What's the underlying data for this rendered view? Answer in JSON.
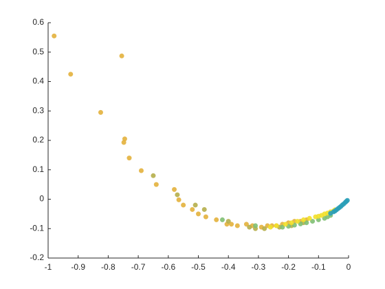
{
  "chart_data": {
    "type": "scatter",
    "xlim": [
      -1,
      0
    ],
    "ylim": [
      -0.2,
      0.6
    ],
    "xticks": [
      -1,
      -0.9,
      -0.8,
      -0.7,
      -0.6,
      -0.5,
      -0.4,
      -0.3,
      -0.2,
      -0.1,
      0
    ],
    "yticks": [
      -0.2,
      -0.1,
      0,
      0.1,
      0.2,
      0.3,
      0.4,
      0.5,
      0.6
    ],
    "grid": false,
    "series": [
      {
        "color": "#e3b13c",
        "x": [
          -0.98,
          -0.925,
          -0.825,
          -0.755,
          -0.745,
          -0.748,
          -0.73,
          -0.69,
          -0.64,
          -0.58,
          -0.565,
          -0.55,
          -0.52,
          -0.5,
          -0.475,
          -0.44,
          -0.405,
          -0.39,
          -0.37,
          -0.34,
          -0.32,
          -0.29,
          -0.27,
          -0.255,
          -0.24,
          -0.22,
          -0.2,
          -0.18,
          -0.16,
          -0.14
        ],
        "y": [
          0.555,
          0.425,
          0.295,
          0.487,
          0.205,
          0.193,
          0.14,
          0.097,
          0.05,
          0.033,
          -0.002,
          -0.02,
          -0.035,
          -0.05,
          -0.06,
          -0.07,
          -0.085,
          -0.085,
          -0.09,
          -0.085,
          -0.09,
          -0.095,
          -0.09,
          -0.09,
          -0.09,
          -0.085,
          -0.08,
          -0.075,
          -0.075,
          -0.07
        ]
      },
      {
        "color": "#b5ae4a",
        "x": [
          -0.65,
          -0.57,
          -0.51,
          -0.48,
          -0.4,
          -0.33,
          -0.31,
          -0.28,
          -0.23,
          -0.19,
          -0.15
        ],
        "y": [
          0.08,
          0.015,
          -0.02,
          -0.035,
          -0.075,
          -0.095,
          -0.1,
          -0.1,
          -0.095,
          -0.09,
          -0.08
        ]
      },
      {
        "color": "#7fbf73",
        "x": [
          -0.42,
          -0.31,
          -0.22,
          -0.2,
          -0.18,
          -0.16,
          -0.14,
          -0.12,
          -0.1,
          -0.08,
          -0.07,
          -0.06
        ],
        "y": [
          -0.07,
          -0.09,
          -0.095,
          -0.092,
          -0.088,
          -0.084,
          -0.08,
          -0.075,
          -0.07,
          -0.065,
          -0.06,
          -0.055
        ]
      },
      {
        "color": "#f2e02a",
        "x": [
          -0.26,
          -0.24,
          -0.21,
          -0.19,
          -0.17,
          -0.15,
          -0.13,
          -0.11,
          -0.1,
          -0.09,
          -0.08,
          -0.07,
          -0.06,
          -0.05,
          -0.045
        ],
        "y": [
          -0.095,
          -0.09,
          -0.085,
          -0.08,
          -0.075,
          -0.07,
          -0.065,
          -0.06,
          -0.058,
          -0.055,
          -0.05,
          -0.047,
          -0.043,
          -0.04,
          -0.036
        ]
      },
      {
        "color": "#2a9fb8",
        "x": [
          -0.06,
          -0.05,
          -0.045,
          -0.04,
          -0.035,
          -0.03,
          -0.025,
          -0.02,
          -0.015,
          -0.01,
          -0.007,
          -0.004
        ],
        "y": [
          -0.048,
          -0.043,
          -0.04,
          -0.036,
          -0.032,
          -0.028,
          -0.024,
          -0.019,
          -0.015,
          -0.01,
          -0.007,
          -0.004
        ]
      }
    ]
  }
}
